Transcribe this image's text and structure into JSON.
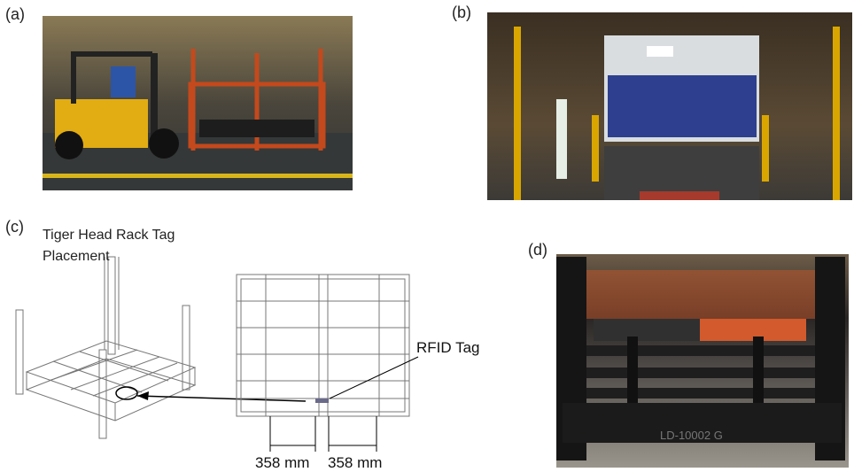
{
  "panels": [
    {
      "label": "(a)"
    },
    {
      "label": "(b)"
    },
    {
      "label": "(c)",
      "title": "Tiger Head Rack Tag Placement",
      "callout": "RFID Tag",
      "dimensions": [
        "358 mm",
        "358 mm"
      ]
    },
    {
      "label": "(d)",
      "marking": "LD-10002  G"
    }
  ]
}
